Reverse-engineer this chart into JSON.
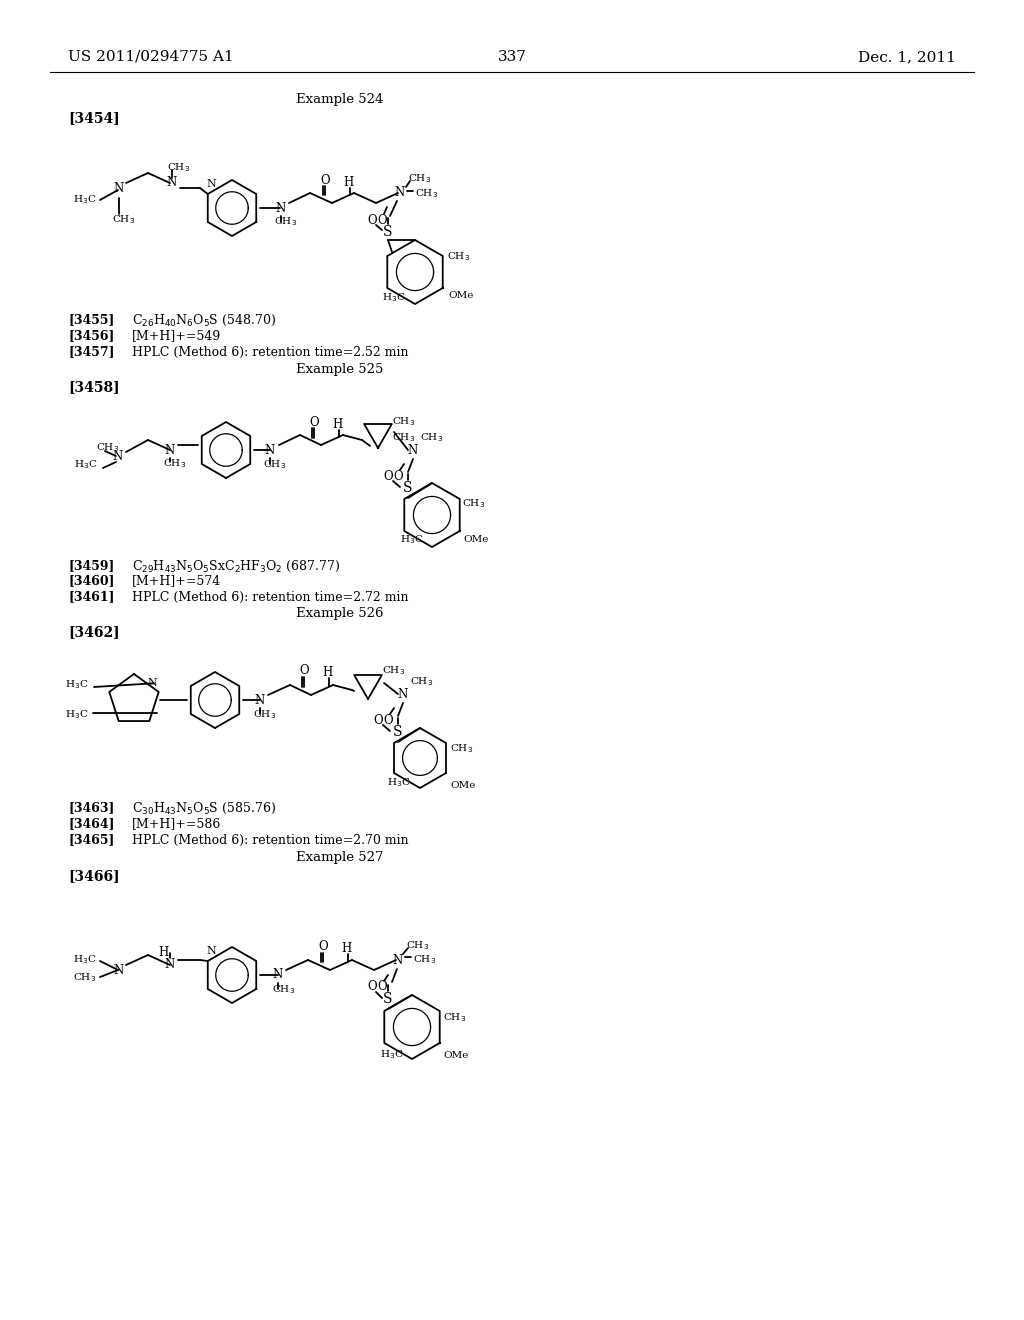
{
  "bg": "#ffffff",
  "header_left": "US 2011/0294775 A1",
  "header_center": "337",
  "header_right": "Dec. 1, 2011",
  "sections": [
    {
      "example_label": "Example 524",
      "bracket_label": "[3454]",
      "data_lines": [
        {
          "tag": "[3455]",
          "text": "C$_{26}$H$_{40}$N$_6$O$_5$S (548.70)"
        },
        {
          "tag": "[3456]",
          "text": "[M+H]+=549"
        },
        {
          "tag": "[3457]",
          "text": "HPLC (Method 6): retention time=2.52 min"
        }
      ]
    },
    {
      "example_label": "Example 525",
      "bracket_label": "[3458]",
      "data_lines": [
        {
          "tag": "[3459]",
          "text": "C$_{29}$H$_{43}$N$_5$O$_5$SxC$_2$HF$_3$O$_2$ (687.77)"
        },
        {
          "tag": "[3460]",
          "text": "[M+H]+=574"
        },
        {
          "tag": "[3461]",
          "text": "HPLC (Method 6): retention time=2.72 min"
        }
      ]
    },
    {
      "example_label": "Example 526",
      "bracket_label": "[3462]",
      "data_lines": [
        {
          "tag": "[3463]",
          "text": "C$_{30}$H$_{43}$N$_5$O$_5$S (585.76)"
        },
        {
          "tag": "[3464]",
          "text": "[M+H]+=586"
        },
        {
          "tag": "[3465]",
          "text": "HPLC (Method 6): retention time=2.70 min"
        }
      ]
    },
    {
      "example_label": "Example 527",
      "bracket_label": "[3466]",
      "data_lines": []
    }
  ]
}
